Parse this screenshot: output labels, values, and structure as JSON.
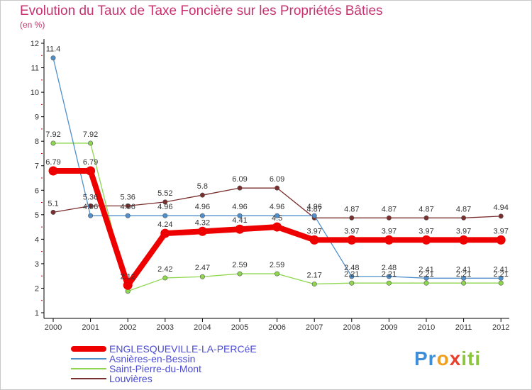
{
  "header": {
    "title": "Evolution du Taux de Taxe Foncière sur les Propriétés Bâties",
    "subtitle": "(en %)"
  },
  "logo": {
    "parts": [
      "Pr",
      "o",
      "x",
      "iti"
    ],
    "colors": [
      "#3f8fd8",
      "#f0a020",
      "#e8402a",
      "#8cc63f"
    ]
  },
  "chart_data": {
    "type": "line",
    "title": "Evolution du Taux de Taxe Foncière sur les Propriétés Bâties",
    "ylabel": "(en %)",
    "ylim": [
      1,
      12
    ],
    "y_ticks": [
      "1",
      "2",
      "3",
      "4",
      "5",
      "6",
      "7",
      "8",
      "9",
      "10",
      "11",
      "12"
    ],
    "x": [
      "2000",
      "2001",
      "2002",
      "2003",
      "2004",
      "2005",
      "2006",
      "2007",
      "2008",
      "2009",
      "2010",
      "2011",
      "2012"
    ],
    "grid": false,
    "legend_position": "bottom-left",
    "series": [
      {
        "name": "ENGLESQUEVILLE-LA-PERCéE",
        "color": "#ee0000",
        "emphasis": true,
        "values": [
          6.79,
          6.79,
          2.12,
          4.24,
          4.32,
          4.41,
          4.5,
          3.97,
          3.97,
          3.97,
          3.97,
          3.97,
          3.97
        ],
        "labels": [
          "6.79",
          "6.79",
          "2.12",
          "4.24",
          "4.32",
          "4.41",
          "4.5",
          "3.97",
          "3.97",
          "3.97",
          "3.97",
          "3.97",
          "3.97"
        ]
      },
      {
        "name": "Asnières-en-Bessin",
        "color": "#4f90cc",
        "emphasis": false,
        "values": [
          11.4,
          4.96,
          4.96,
          4.96,
          4.96,
          4.96,
          4.96,
          4.96,
          2.48,
          2.48,
          2.41,
          2.41,
          2.41
        ],
        "labels": [
          "11.4",
          "4.96",
          "4.96",
          "4.96",
          "4.96",
          "4.96",
          "4.96",
          "4.96",
          "2.48",
          "2.48",
          "2.41",
          "2.41",
          "2.41"
        ]
      },
      {
        "name": "Saint-Pierre-du-Mont",
        "color": "#8ed64e",
        "emphasis": false,
        "values": [
          7.92,
          7.92,
          1.88,
          2.42,
          2.47,
          2.59,
          2.59,
          2.17,
          2.21,
          2.21,
          2.21,
          2.21,
          2.21
        ],
        "labels": [
          "7.92",
          "7.92",
          "",
          "2.42",
          "2.47",
          "2.59",
          "2.59",
          "2.17",
          "2.21",
          "2.21",
          "2.21",
          "2.21",
          "2.21"
        ]
      },
      {
        "name": "Louvières",
        "color": "#7a2e2e",
        "emphasis": false,
        "values": [
          5.1,
          5.36,
          5.36,
          5.52,
          5.8,
          6.09,
          6.09,
          4.87,
          4.87,
          4.87,
          4.87,
          4.87,
          4.94
        ],
        "labels": [
          "5.1",
          "5.36",
          "5.36",
          "5.52",
          "5.8",
          "6.09",
          "6.09",
          "4.87",
          "4.87",
          "4.87",
          "4.87",
          "4.87",
          "4.94"
        ]
      }
    ]
  }
}
